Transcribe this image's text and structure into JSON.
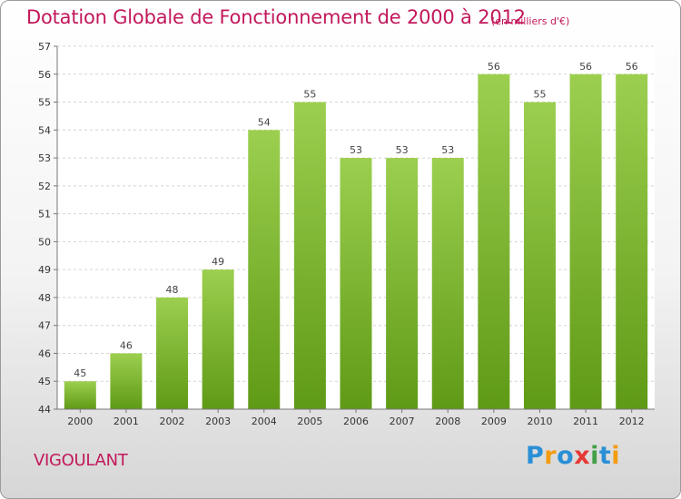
{
  "chart_data": {
    "type": "bar",
    "title": "Dotation Globale de Fonctionnement de 2000 à 2012",
    "subtitle": "(en milliers d'€)",
    "categories": [
      "2000",
      "2001",
      "2002",
      "2003",
      "2004",
      "2005",
      "2006",
      "2007",
      "2008",
      "2009",
      "2010",
      "2011",
      "2012"
    ],
    "values": [
      45,
      46,
      48,
      49,
      54,
      55,
      53,
      53,
      53,
      56,
      55,
      56,
      56
    ],
    "ylim": [
      44,
      57
    ],
    "yticks": [
      44,
      45,
      46,
      47,
      48,
      49,
      50,
      51,
      52,
      53,
      54,
      55,
      56,
      57
    ],
    "grid": true,
    "bar_color": "#7ab82e",
    "label": "VIGOULANT"
  },
  "logo": {
    "letters": [
      "P",
      "r",
      "o",
      "x",
      "i",
      "t",
      "i"
    ],
    "colors": [
      "#2a8fd6",
      "#f39c12",
      "#2a8fd6",
      "#e53935",
      "#43a047",
      "#2a8fd6",
      "#f39c12"
    ]
  }
}
